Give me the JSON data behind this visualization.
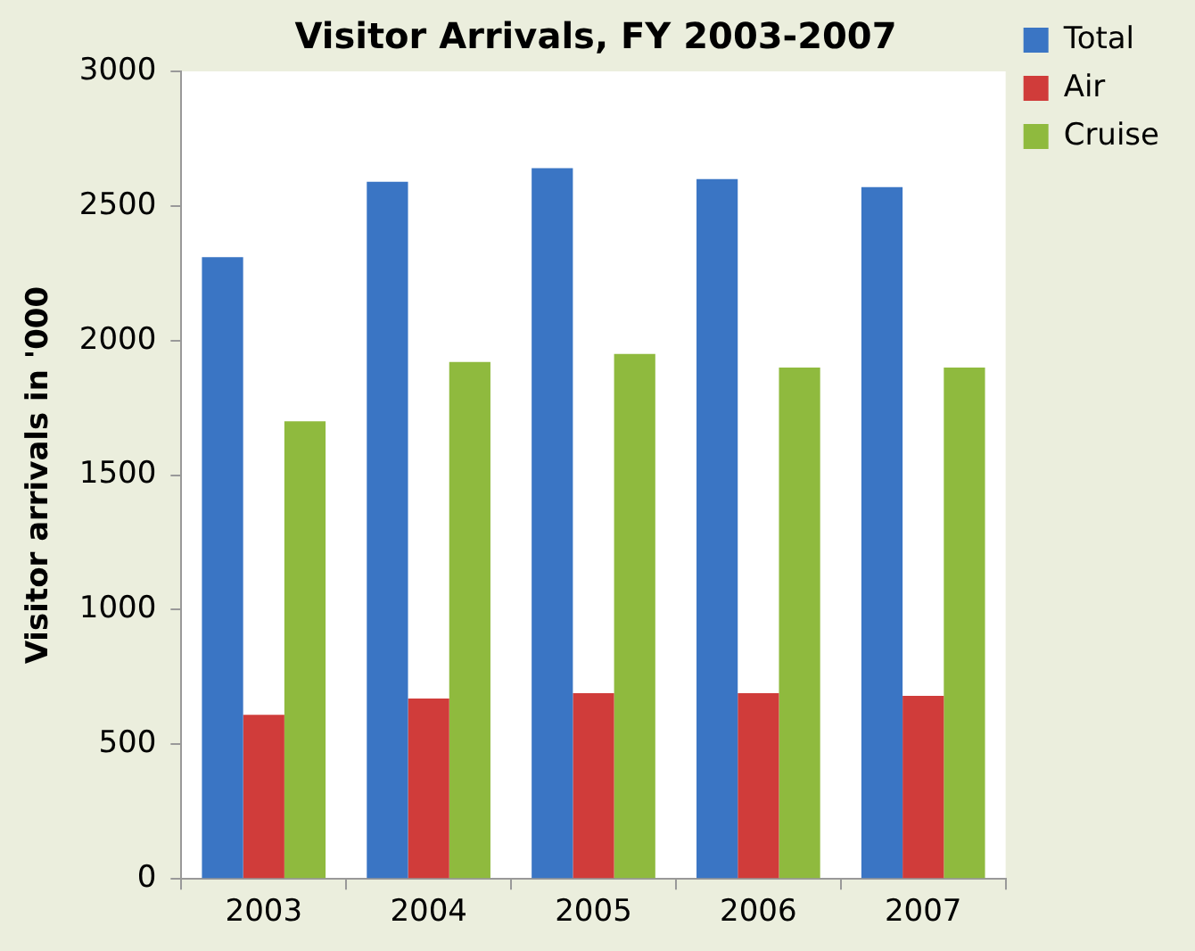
{
  "chart_data": {
    "type": "bar",
    "title": "Visitor Arrivals, FY 2003-2007",
    "ylabel": "Visitor arrivals in '000",
    "categories": [
      "2003",
      "2004",
      "2005",
      "2006",
      "2007"
    ],
    "series": [
      {
        "name": "Total",
        "color": "#3a75c4",
        "values": [
          2310,
          2590,
          2640,
          2600,
          2570
        ]
      },
      {
        "name": "Air",
        "color": "#d03c3a",
        "values": [
          610,
          670,
          690,
          690,
          680
        ]
      },
      {
        "name": "Cruise",
        "color": "#8fba3e",
        "values": [
          1700,
          1920,
          1950,
          1900,
          1900
        ]
      }
    ],
    "ylim": [
      0,
      3000
    ],
    "yticks": [
      0,
      500,
      1000,
      1500,
      2000,
      2500,
      3000
    ],
    "legend": "top right"
  }
}
